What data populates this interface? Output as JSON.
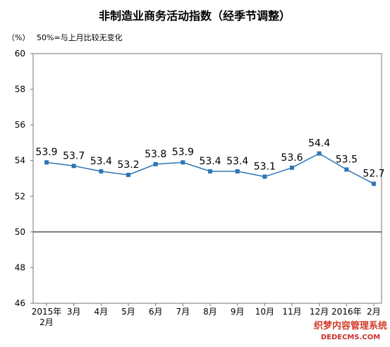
{
  "chart_data": {
    "type": "line",
    "title": "非制造业商务活动指数（经季节调整）",
    "unit_label": "（%）",
    "note": "50%=与上月比较无变化",
    "categories": [
      "2015年\n2月",
      "3月",
      "4月",
      "5月",
      "6月",
      "7月",
      "8月",
      "9月",
      "10月",
      "11月",
      "12月",
      "2016年",
      "2月"
    ],
    "values": [
      53.9,
      53.7,
      53.4,
      53.2,
      53.8,
      53.9,
      53.4,
      53.4,
      53.1,
      53.6,
      54.4,
      53.5,
      52.7
    ],
    "data_labels": [
      "53.9",
      "53.7",
      "53.4",
      "53.2",
      "53.8",
      "53.9",
      "53.4",
      "53.4",
      "53.1",
      "53.6",
      "54.4",
      "53.5",
      "52.7"
    ],
    "y_ticks": [
      "60",
      "58",
      "56",
      "54",
      "52",
      "50",
      "48",
      "46"
    ],
    "ylim": [
      46,
      60
    ],
    "reference_line": 50,
    "grid": false,
    "colors": {
      "line": "#2e75b6",
      "marker": "#2e75b6",
      "reference": "#000000",
      "axis": "#666666",
      "text": "#000000"
    }
  },
  "watermark": {
    "line1": "织梦内容管理系统",
    "line2": "DEDECMS.COM"
  }
}
